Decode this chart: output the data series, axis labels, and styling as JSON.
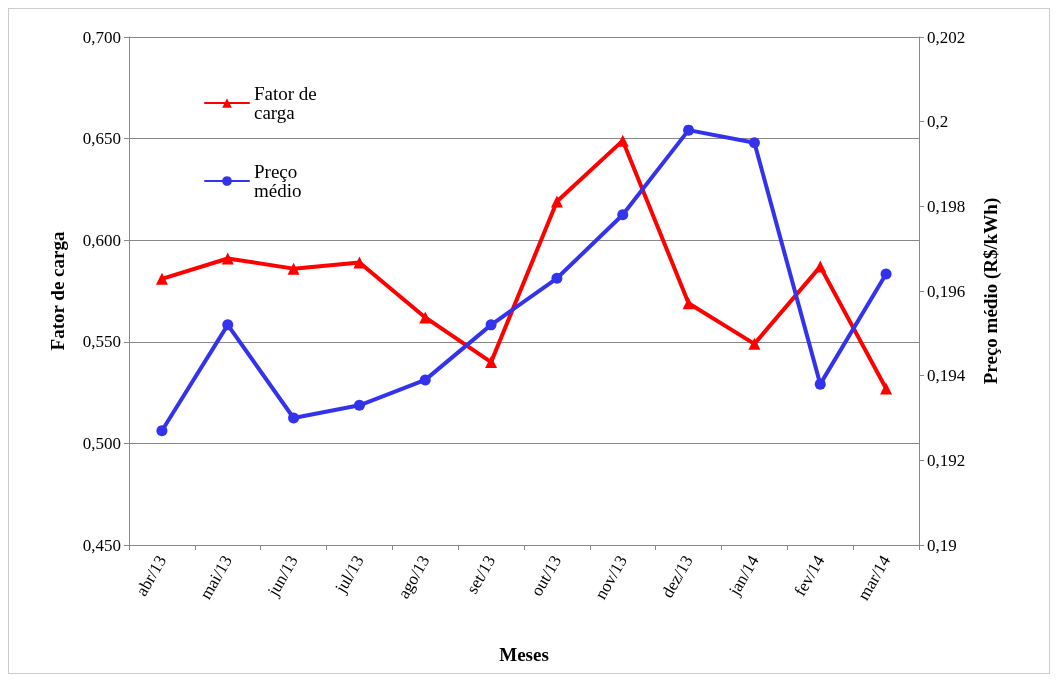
{
  "chart_data": {
    "type": "line",
    "xlabel": "Meses",
    "ylabel": "Fator de carga",
    "y2label": "Preço médio (R$/kWh)",
    "categories": [
      "abr/13",
      "mai/13",
      "jun/13",
      "jul/13",
      "ago/13",
      "set/13",
      "out/13",
      "nov/13",
      "dez/13",
      "jan/14",
      "fev/14",
      "mar/14"
    ],
    "series": [
      {
        "name": "Fator de carga",
        "color": "#ff0000",
        "marker": "triangle",
        "values": [
          0.581,
          0.591,
          0.586,
          0.589,
          0.562,
          0.54,
          0.619,
          0.649,
          0.569,
          0.549,
          0.587,
          0.527
        ]
      },
      {
        "name": "Preço médio",
        "color": "#3333ee",
        "marker": "circle",
        "axis": "y2",
        "values": [
          0.1927,
          0.1952,
          0.193,
          0.1933,
          0.1939,
          0.1952,
          0.1963,
          0.1978,
          0.1998,
          0.1995,
          0.1938,
          0.1964
        ]
      }
    ],
    "ylim": [
      0.45,
      0.7
    ],
    "yticks": [
      {
        "value": 0.45,
        "label": "0,450"
      },
      {
        "value": 0.5,
        "label": "0,500"
      },
      {
        "value": 0.55,
        "label": "0,550"
      },
      {
        "value": 0.6,
        "label": "0,600"
      },
      {
        "value": 0.65,
        "label": "0,650"
      },
      {
        "value": 0.7,
        "label": "0,700"
      }
    ],
    "y2lim": [
      0.19,
      0.202
    ],
    "y2ticks": [
      {
        "value": 0.19,
        "label": "0,19"
      },
      {
        "value": 0.192,
        "label": "0,192"
      },
      {
        "value": 0.194,
        "label": "0,194"
      },
      {
        "value": 0.196,
        "label": "0,196"
      },
      {
        "value": 0.198,
        "label": "0,198"
      },
      {
        "value": 0.2,
        "label": "0,2"
      },
      {
        "value": 0.202,
        "label": "0,202"
      }
    ],
    "grid": "y",
    "legend": "top left",
    "line_style": "solid"
  }
}
